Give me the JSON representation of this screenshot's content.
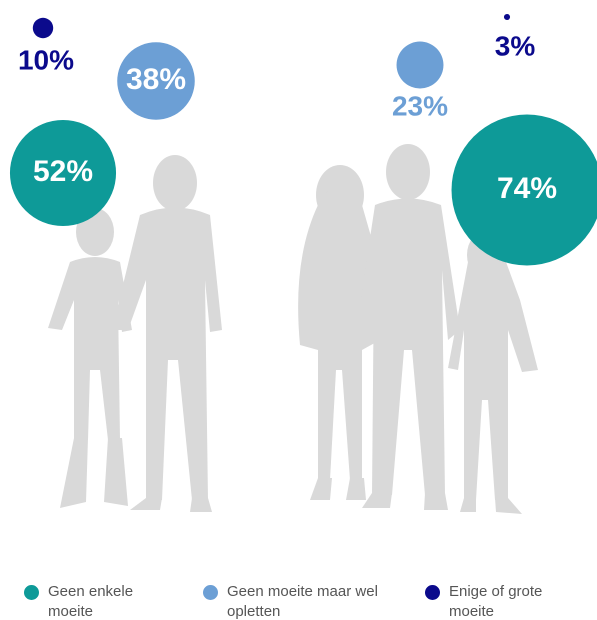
{
  "chart_data": {
    "type": "bubble",
    "series": [
      {
        "name": "Geen enkele moeite",
        "color": "#0e9a98",
        "values": [
          52,
          74
        ],
        "value_labels": [
          "52%",
          "74%"
        ]
      },
      {
        "name": "Geen moeite maar wel opletten",
        "color": "#6c9fd5",
        "values": [
          38,
          23
        ],
        "value_labels": [
          "38%",
          "23%"
        ]
      },
      {
        "name": "Enige of grote moeite",
        "color": "#0b0a8c",
        "values": [
          10,
          3
        ],
        "value_labels": [
          "10%",
          "3%"
        ]
      }
    ]
  }
}
